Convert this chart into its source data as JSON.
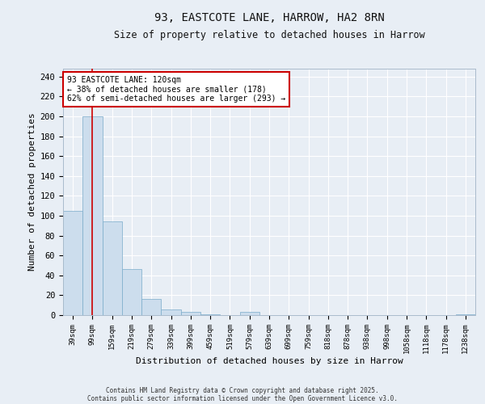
{
  "title_line1": "93, EASTCOTE LANE, HARROW, HA2 8RN",
  "title_line2": "Size of property relative to detached houses in Harrow",
  "xlabel": "Distribution of detached houses by size in Harrow",
  "ylabel": "Number of detached properties",
  "categories": [
    "39sqm",
    "99sqm",
    "159sqm",
    "219sqm",
    "279sqm",
    "339sqm",
    "399sqm",
    "459sqm",
    "519sqm",
    "579sqm",
    "639sqm",
    "699sqm",
    "759sqm",
    "818sqm",
    "878sqm",
    "938sqm",
    "998sqm",
    "1058sqm",
    "1118sqm",
    "1178sqm",
    "1238sqm"
  ],
  "values": [
    105,
    200,
    94,
    46,
    16,
    6,
    3,
    1,
    0,
    3,
    0,
    0,
    0,
    0,
    0,
    0,
    0,
    0,
    0,
    0,
    1
  ],
  "bar_color": "#ccdded",
  "bar_edge_color": "#7aabca",
  "background_color": "#e8eef5",
  "grid_color": "#ffffff",
  "annotation_text": "93 EASTCOTE LANE: 120sqm\n← 38% of detached houses are smaller (178)\n62% of semi-detached houses are larger (293) →",
  "annotation_box_color": "#ffffff",
  "annotation_box_edge_color": "#cc0000",
  "red_line_x": 1.0,
  "ylim": [
    0,
    248
  ],
  "yticks": [
    0,
    20,
    40,
    60,
    80,
    100,
    120,
    140,
    160,
    180,
    200,
    220,
    240
  ],
  "footer_line1": "Contains HM Land Registry data © Crown copyright and database right 2025.",
  "footer_line2": "Contains public sector information licensed under the Open Government Licence v3.0."
}
